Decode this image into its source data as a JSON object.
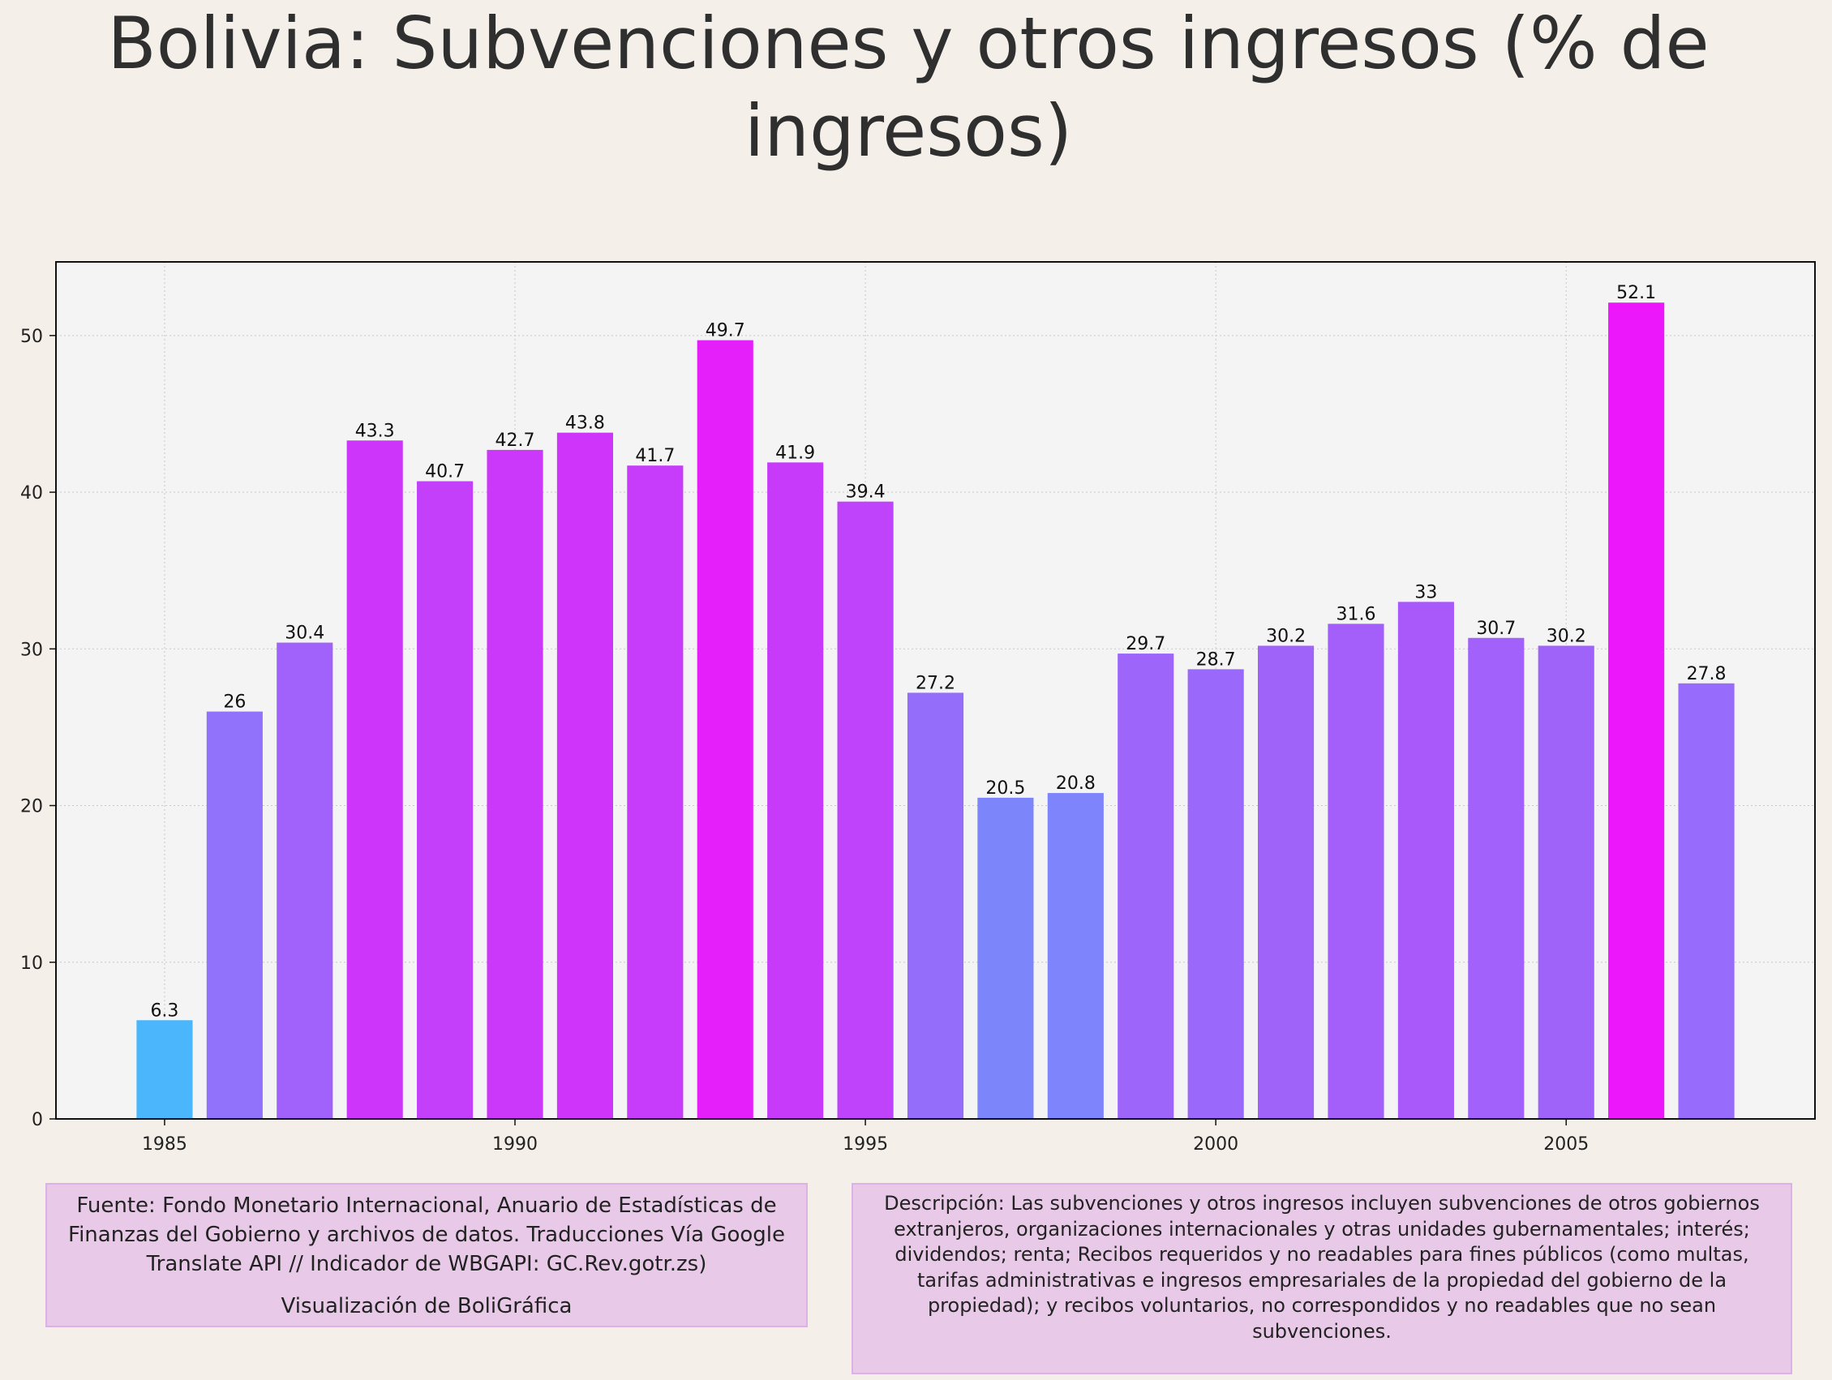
{
  "chart_data": {
    "type": "bar",
    "title": "Bolivia:  Subvenciones y otros ingresos (% de ingresos)",
    "xlabel": "",
    "ylabel": "",
    "x": [
      1985,
      1986,
      1987,
      1988,
      1989,
      1990,
      1991,
      1992,
      1993,
      1994,
      1995,
      1996,
      1997,
      1998,
      1999,
      2000,
      2001,
      2002,
      2003,
      2004,
      2005,
      2006,
      2007
    ],
    "values": [
      6.3,
      26,
      30.4,
      43.3,
      40.7,
      42.7,
      43.8,
      41.7,
      49.7,
      41.9,
      39.4,
      27.2,
      20.5,
      20.8,
      29.7,
      28.7,
      30.2,
      31.6,
      33,
      30.7,
      30.2,
      52.1,
      27.8
    ],
    "data_labels": [
      "6.3",
      "26",
      "30.4",
      "43.3",
      "40.7",
      "42.7",
      "43.8",
      "41.7",
      "49.7",
      "41.9",
      "39.4",
      "27.2",
      "20.5",
      "20.8",
      "29.7",
      "28.7",
      "30.2",
      "31.6",
      "33",
      "30.7",
      "30.2",
      "52.1",
      "27.8"
    ],
    "xticks": [
      1985,
      1990,
      1995,
      2000,
      2005
    ],
    "yticks": [
      0,
      10,
      20,
      30,
      40,
      50
    ],
    "xlim": [
      1983.45,
      2008.55
    ],
    "ylim": [
      0,
      54.7
    ],
    "grid": true,
    "colors": {
      "low": "#4bb6fb",
      "high": "#ec17fa",
      "plot_background": "#f4f4f4",
      "grid": "#c8c8c8"
    }
  },
  "footer": {
    "source": "Fuente: Fondo Monetario Internacional, Anuario de Estadísticas de Finanzas del Gobierno y archivos de datos. Traducciones Vía Google Translate API // Indicador de WBGAPI: GC.Rev.gotr.zs)",
    "credit": "Visualización de BoliGráfica",
    "description": "Descripción: Las subvenciones y otros ingresos incluyen subvenciones de otros gobiernos extranjeros, organizaciones internacionales y otras unidades gubernamentales; interés; dividendos; renta; Recibos requeridos y no readables para fines públicos (como multas, tarifas administrativas e ingresos empresariales de la propiedad del gobierno de la propiedad); y recibos voluntarios, no correspondidos y no readables que no sean subvenciones."
  }
}
